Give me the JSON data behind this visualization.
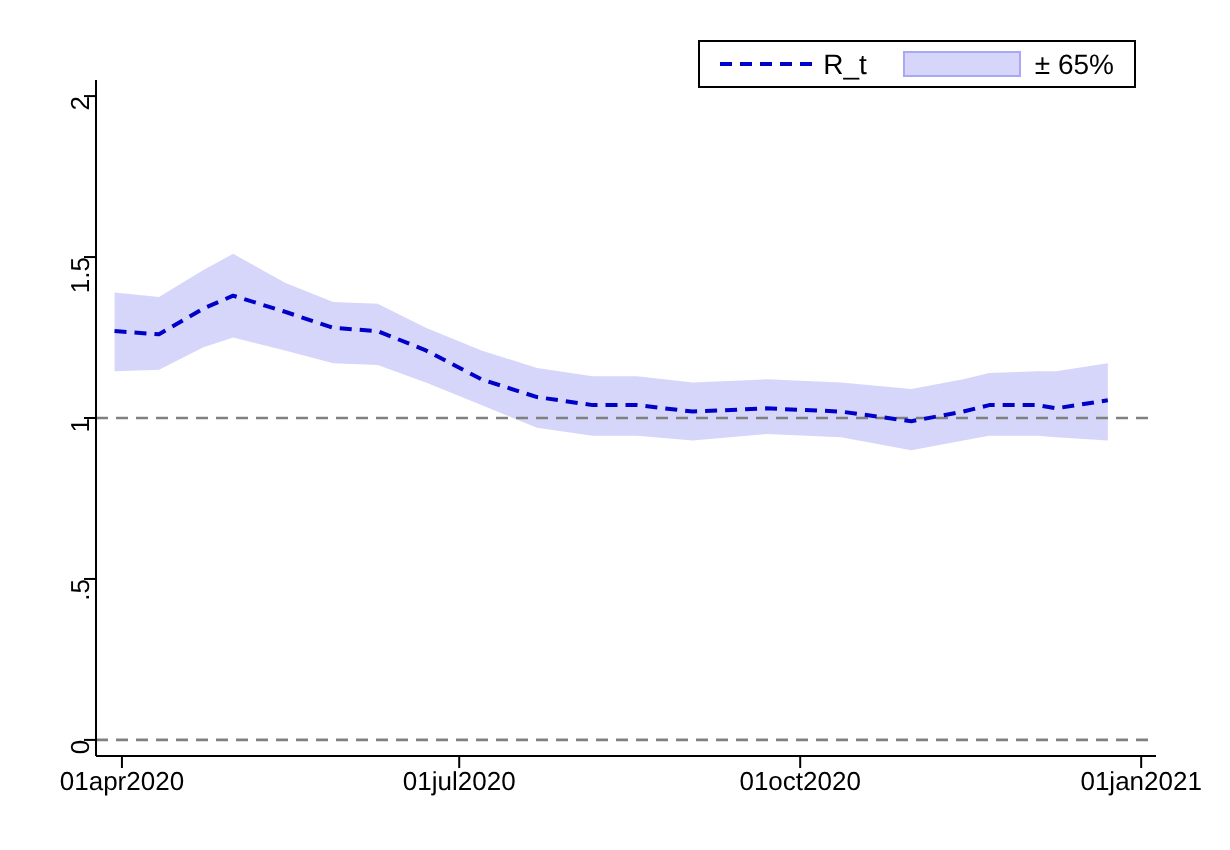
{
  "chart_data": {
    "type": "line",
    "x": [
      "2020-03-30",
      "2020-04-11",
      "2020-04-23",
      "2020-05-01",
      "2020-05-15",
      "2020-05-28",
      "2020-06-09",
      "2020-06-22",
      "2020-07-07",
      "2020-07-22",
      "2020-08-06",
      "2020-08-18",
      "2020-09-02",
      "2020-09-22",
      "2020-10-12",
      "2020-10-31",
      "2020-11-14",
      "2020-11-21",
      "2020-12-04",
      "2020-12-09",
      "2020-12-23"
    ],
    "series": [
      {
        "name": "R_t",
        "color": "#0000c8",
        "line_style": "dashed",
        "values": [
          1.27,
          1.26,
          1.34,
          1.38,
          1.33,
          1.28,
          1.27,
          1.21,
          1.12,
          1.065,
          1.04,
          1.04,
          1.02,
          1.03,
          1.02,
          0.99,
          1.02,
          1.04,
          1.04,
          1.03,
          1.055
        ],
        "lower": [
          1.145,
          1.15,
          1.22,
          1.25,
          1.21,
          1.17,
          1.165,
          1.11,
          1.04,
          0.97,
          0.945,
          0.945,
          0.93,
          0.95,
          0.94,
          0.9,
          0.93,
          0.945,
          0.945,
          0.94,
          0.93
        ],
        "upper": [
          1.39,
          1.376,
          1.46,
          1.51,
          1.42,
          1.36,
          1.355,
          1.28,
          1.21,
          1.155,
          1.13,
          1.13,
          1.11,
          1.12,
          1.11,
          1.09,
          1.12,
          1.14,
          1.145,
          1.145,
          1.17
        ]
      }
    ],
    "annotations": [
      "± 65%"
    ],
    "xlim": [
      "2020-03-25",
      "2021-01-05"
    ],
    "xticks": [
      {
        "value": "2020-04-01",
        "label": "01apr2020"
      },
      {
        "value": "2020-07-01",
        "label": "01jul2020"
      },
      {
        "value": "2020-10-01",
        "label": "01oct2020"
      },
      {
        "value": "2021-01-01",
        "label": "01jan2021"
      }
    ],
    "ylim": [
      -0.05,
      2.05
    ],
    "yticks": [
      0,
      {
        "value": 0.5,
        "label": ".5"
      },
      1,
      1.5,
      2
    ],
    "ref_lines": [
      {
        "axis": "y",
        "value": 1,
        "color": "#808080",
        "line_style": "dashed"
      },
      {
        "axis": "y",
        "value": 0,
        "color": "#808080",
        "line_style": "dashed"
      }
    ],
    "grid": false,
    "legend": "top right",
    "marker": "none"
  }
}
